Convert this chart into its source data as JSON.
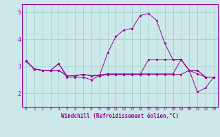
{
  "xlabel": "Windchill (Refroidissement éolien,°C)",
  "bg_color": "#cce8e8",
  "line_color": "#990099",
  "grid_color": "#99cccc",
  "xlim": [
    -0.5,
    23.5
  ],
  "ylim": [
    1.5,
    5.3
  ],
  "xticks": [
    0,
    1,
    2,
    3,
    4,
    5,
    6,
    7,
    8,
    9,
    10,
    11,
    12,
    13,
    14,
    15,
    16,
    17,
    18,
    19,
    20,
    21,
    22,
    23
  ],
  "yticks": [
    2,
    3,
    4,
    5
  ],
  "lines": [
    [
      3.2,
      2.9,
      2.85,
      2.85,
      3.1,
      2.6,
      2.6,
      2.6,
      2.5,
      2.65,
      3.5,
      4.1,
      4.35,
      4.4,
      4.88,
      4.95,
      4.7,
      3.85,
      3.25,
      3.25,
      2.85,
      2.05,
      2.2,
      2.6
    ],
    [
      3.2,
      2.9,
      2.85,
      2.85,
      3.1,
      2.65,
      2.65,
      2.7,
      2.65,
      2.68,
      2.72,
      2.72,
      2.72,
      2.72,
      2.72,
      2.72,
      2.72,
      2.72,
      2.72,
      3.25,
      2.85,
      2.85,
      2.6,
      2.6
    ],
    [
      3.2,
      2.9,
      2.85,
      2.85,
      2.85,
      2.65,
      2.65,
      2.7,
      2.65,
      2.65,
      2.7,
      2.7,
      2.7,
      2.7,
      2.7,
      2.7,
      2.7,
      2.7,
      2.7,
      2.7,
      2.85,
      2.72,
      2.6,
      2.6
    ],
    [
      3.2,
      2.9,
      2.85,
      2.85,
      2.85,
      2.65,
      2.65,
      2.7,
      2.65,
      2.65,
      2.7,
      2.7,
      2.7,
      2.7,
      2.7,
      3.25,
      3.25,
      3.25,
      3.25,
      3.25,
      2.85,
      2.85,
      2.6,
      2.6
    ]
  ]
}
